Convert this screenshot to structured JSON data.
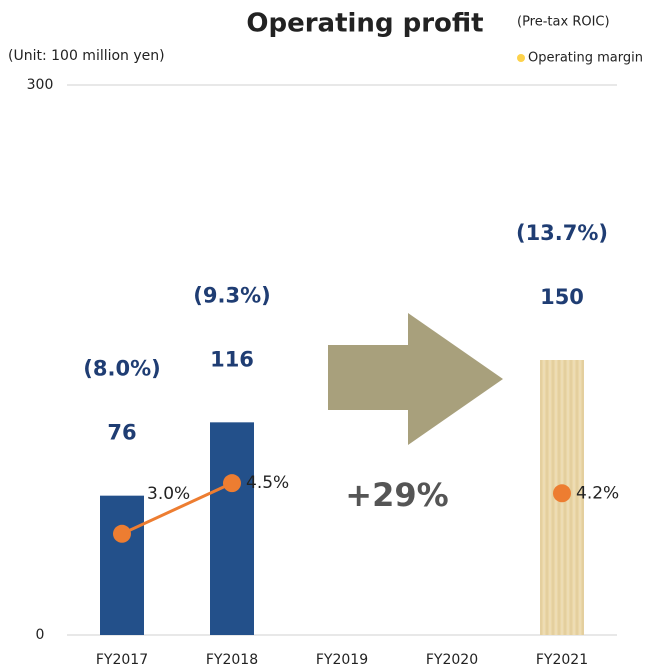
{
  "chart_data": {
    "type": "bar",
    "title": "Operating profit",
    "subtitle": "(Unit: 100 million yen)",
    "categories": [
      "FY2017",
      "FY2018",
      "FY2019",
      "FY2020",
      "FY2021"
    ],
    "values": [
      76,
      116,
      null,
      null,
      150
    ],
    "colors": [
      "#23508a",
      "#23508a",
      null,
      null,
      "#ead6a6"
    ],
    "ylim": [
      0,
      300
    ],
    "yticks": [
      0,
      300
    ],
    "roic": {
      "name": "(Pre-tax ROIC)",
      "values": [
        8.0,
        9.3,
        null,
        null,
        13.7
      ],
      "value_labels": [
        "(8.0%)",
        "(9.3%)",
        null,
        null,
        "(13.7%)"
      ]
    },
    "series": [
      {
        "name": "Operating margin",
        "legend_color": "#fdd24b",
        "color": "#ed7d31",
        "axis": "y2",
        "values": [
          3.0,
          4.5,
          null,
          null,
          4.2
        ],
        "value_labels": [
          "3.0%",
          "4.5%",
          null,
          null,
          "4.2%"
        ]
      }
    ],
    "y2lim": [
      0,
      16.3
    ],
    "annotation": "+29%"
  }
}
